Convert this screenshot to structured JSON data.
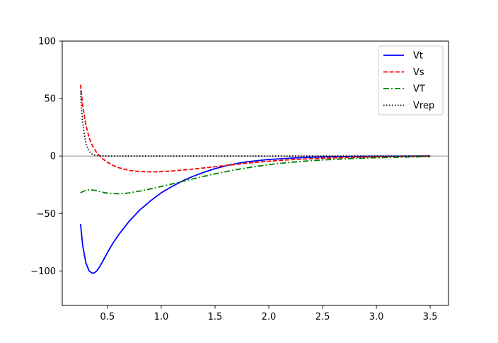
{
  "chart_data": {
    "type": "line",
    "title": "",
    "xlabel": "",
    "ylabel": "",
    "xlim": [
      0.08,
      3.67
    ],
    "ylim": [
      -130,
      100
    ],
    "x_ticks": [
      0.5,
      1.0,
      1.5,
      2.0,
      2.5,
      3.0,
      3.5
    ],
    "x_tick_labels": [
      "0.5",
      "1.0",
      "1.5",
      "2.0",
      "2.5",
      "3.0",
      "3.5"
    ],
    "y_ticks": [
      100,
      50,
      0,
      -50,
      -100
    ],
    "y_tick_labels": [
      "100",
      "50",
      "0",
      "−50",
      "−100"
    ],
    "grid": false,
    "legend_position": "top-right",
    "reference_line": {
      "y": 0,
      "color": "#808080"
    },
    "series": [
      {
        "name": "Vt",
        "color": "#0000ff",
        "style": "solid",
        "x": [
          0.25,
          0.27,
          0.3,
          0.33,
          0.36,
          0.38,
          0.4,
          0.43,
          0.46,
          0.5,
          0.55,
          0.6,
          0.7,
          0.8,
          0.9,
          1.0,
          1.1,
          1.2,
          1.3,
          1.4,
          1.5,
          1.6,
          1.7,
          1.8,
          1.9,
          2.0,
          2.2,
          2.4,
          2.6,
          2.8,
          3.0,
          3.2,
          3.5
        ],
        "y": [
          -59,
          -78,
          -93,
          -100,
          -102,
          -101.5,
          -100,
          -96,
          -91,
          -84,
          -76,
          -69,
          -57,
          -47,
          -39,
          -32,
          -26.5,
          -21.5,
          -17.5,
          -14,
          -11,
          -8.5,
          -6.5,
          -5,
          -4,
          -3,
          -1.8,
          -1,
          -0.6,
          -0.3,
          -0.2,
          -0.1,
          0
        ]
      },
      {
        "name": "Vs",
        "color": "#ff0000",
        "style": "dashed",
        "x": [
          0.25,
          0.27,
          0.3,
          0.33,
          0.36,
          0.4,
          0.45,
          0.5,
          0.55,
          0.6,
          0.7,
          0.8,
          0.9,
          1.0,
          1.1,
          1.2,
          1.3,
          1.4,
          1.5,
          1.6,
          1.7,
          1.8,
          1.9,
          2.0,
          2.2,
          2.4,
          2.6,
          2.8,
          3.0,
          3.2,
          3.5
        ],
        "y": [
          62,
          44,
          27,
          16,
          9,
          3,
          -2,
          -5.5,
          -8,
          -10,
          -12.5,
          -13.5,
          -13.8,
          -13.6,
          -13,
          -12.2,
          -11.3,
          -10.3,
          -9.3,
          -8.2,
          -7.2,
          -6.2,
          -5.3,
          -4.5,
          -3.2,
          -2.3,
          -1.6,
          -1.1,
          -0.7,
          -0.4,
          -0.2
        ]
      },
      {
        "name": "VT",
        "color": "#008000",
        "style": "dashdot",
        "x": [
          0.25,
          0.28,
          0.32,
          0.36,
          0.4,
          0.45,
          0.5,
          0.55,
          0.6,
          0.65,
          0.7,
          0.8,
          0.9,
          1.0,
          1.1,
          1.2,
          1.3,
          1.4,
          1.5,
          1.6,
          1.7,
          1.8,
          1.9,
          2.0,
          2.2,
          2.4,
          2.6,
          2.8,
          3.0,
          3.2,
          3.5
        ],
        "y": [
          -32,
          -30.5,
          -29.5,
          -29.5,
          -30.2,
          -31.5,
          -32.3,
          -32.7,
          -32.8,
          -32.6,
          -32.1,
          -30.5,
          -28.6,
          -26.5,
          -24.3,
          -22,
          -19.8,
          -17.6,
          -15.5,
          -13.6,
          -11.8,
          -10.2,
          -8.8,
          -7.5,
          -5.5,
          -4,
          -2.9,
          -2.1,
          -1.5,
          -1,
          -0.5
        ]
      },
      {
        "name": "Vrep",
        "color": "#000000",
        "style": "dotted",
        "x": [
          0.25,
          0.26,
          0.27,
          0.28,
          0.29,
          0.3,
          0.32,
          0.34,
          0.36,
          0.38,
          0.4,
          0.45,
          0.5,
          1.0,
          2.0,
          3.0,
          3.5
        ],
        "y": [
          57,
          40,
          30,
          22,
          16,
          11,
          6,
          3,
          1.5,
          0.8,
          0.4,
          0.1,
          0,
          0,
          0,
          0,
          0
        ]
      }
    ]
  }
}
